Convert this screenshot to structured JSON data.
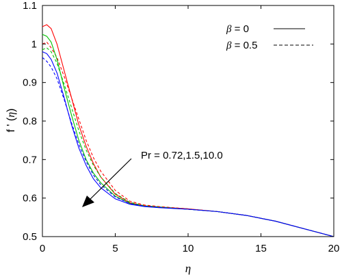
{
  "chart_data": {
    "type": "line",
    "xlabel": "η",
    "ylabel_main": "f ' (",
    "ylabel_var": "η",
    "ylabel_close": ")",
    "xlim": [
      0,
      20
    ],
    "ylim": [
      0.5,
      1.1
    ],
    "xticks": [
      0,
      5,
      10,
      15,
      20
    ],
    "xtick_labels": [
      "0",
      "5",
      "10",
      "15",
      "20"
    ],
    "yticks": [
      0.5,
      0.6,
      0.7,
      0.8,
      0.9,
      1.0,
      1.1
    ],
    "ytick_labels": [
      "0.5",
      "0.6",
      "0.7",
      "0.8",
      "0.9",
      "1",
      "1.1"
    ],
    "grid": false,
    "legend": {
      "placement": "top-right",
      "entries": [
        {
          "symbol": "β",
          "text": " = 0",
          "style": "solid"
        },
        {
          "symbol": "β",
          "text": " = 0.5",
          "style": "dashed"
        }
      ]
    },
    "annotation": {
      "text": "Pr = 0.72,1.5,10.0"
    },
    "series": [
      {
        "color": "#ff0000",
        "style": "solid",
        "x": [
          0,
          0.3,
          0.6,
          1,
          1.5,
          2,
          2.5,
          3,
          3.5,
          4,
          5,
          6,
          7,
          8,
          10,
          12,
          14,
          16,
          18,
          20
        ],
        "y": [
          1.045,
          1.05,
          1.04,
          1.0,
          0.93,
          0.86,
          0.79,
          0.735,
          0.69,
          0.655,
          0.61,
          0.588,
          0.58,
          0.577,
          0.572,
          0.565,
          0.555,
          0.54,
          0.52,
          0.5
        ]
      },
      {
        "color": "#ff0000",
        "style": "dashed",
        "x": [
          0,
          0.3,
          0.6,
          1,
          1.5,
          2,
          2.5,
          3,
          3.5,
          4,
          5,
          6,
          7,
          8,
          10,
          12,
          14,
          16,
          18,
          20
        ],
        "y": [
          1.0,
          1.005,
          0.99,
          0.965,
          0.915,
          0.86,
          0.805,
          0.75,
          0.705,
          0.67,
          0.62,
          0.592,
          0.582,
          0.578,
          0.572,
          0.565,
          0.555,
          0.54,
          0.52,
          0.5
        ]
      },
      {
        "color": "#00c000",
        "style": "solid",
        "x": [
          0,
          0.3,
          0.6,
          1,
          1.5,
          2,
          2.5,
          3,
          3.5,
          4,
          5,
          6,
          7,
          8,
          10,
          12,
          14,
          16,
          18,
          20
        ],
        "y": [
          1.025,
          1.02,
          1.005,
          0.96,
          0.885,
          0.815,
          0.75,
          0.7,
          0.665,
          0.64,
          0.605,
          0.586,
          0.579,
          0.576,
          0.571,
          0.565,
          0.555,
          0.54,
          0.52,
          0.5
        ]
      },
      {
        "color": "#00c000",
        "style": "dashed",
        "x": [
          0,
          0.3,
          0.6,
          1,
          1.5,
          2,
          2.5,
          3,
          3.5,
          4,
          5,
          6,
          7,
          8,
          10,
          12,
          14,
          16,
          18,
          20
        ],
        "y": [
          0.985,
          0.99,
          0.98,
          0.95,
          0.895,
          0.835,
          0.775,
          0.725,
          0.685,
          0.655,
          0.612,
          0.589,
          0.58,
          0.577,
          0.571,
          0.565,
          0.555,
          0.54,
          0.52,
          0.5
        ]
      },
      {
        "color": "#0000ff",
        "style": "solid",
        "x": [
          0,
          0.3,
          0.6,
          1,
          1.5,
          2,
          2.5,
          3,
          3.5,
          4,
          5,
          6,
          7,
          8,
          10,
          12,
          14,
          16,
          18,
          20
        ],
        "y": [
          0.98,
          0.975,
          0.96,
          0.925,
          0.86,
          0.79,
          0.73,
          0.685,
          0.65,
          0.627,
          0.598,
          0.584,
          0.578,
          0.575,
          0.571,
          0.565,
          0.555,
          0.54,
          0.52,
          0.5
        ]
      },
      {
        "color": "#0000ff",
        "style": "dashed",
        "x": [
          0,
          0.3,
          0.6,
          1,
          1.5,
          2,
          2.5,
          3,
          3.5,
          4,
          5,
          6,
          7,
          8,
          10,
          12,
          14,
          16,
          18,
          20
        ],
        "y": [
          0.965,
          0.955,
          0.94,
          0.91,
          0.855,
          0.795,
          0.74,
          0.695,
          0.66,
          0.635,
          0.603,
          0.586,
          0.579,
          0.576,
          0.571,
          0.565,
          0.555,
          0.54,
          0.52,
          0.5
        ]
      }
    ]
  }
}
